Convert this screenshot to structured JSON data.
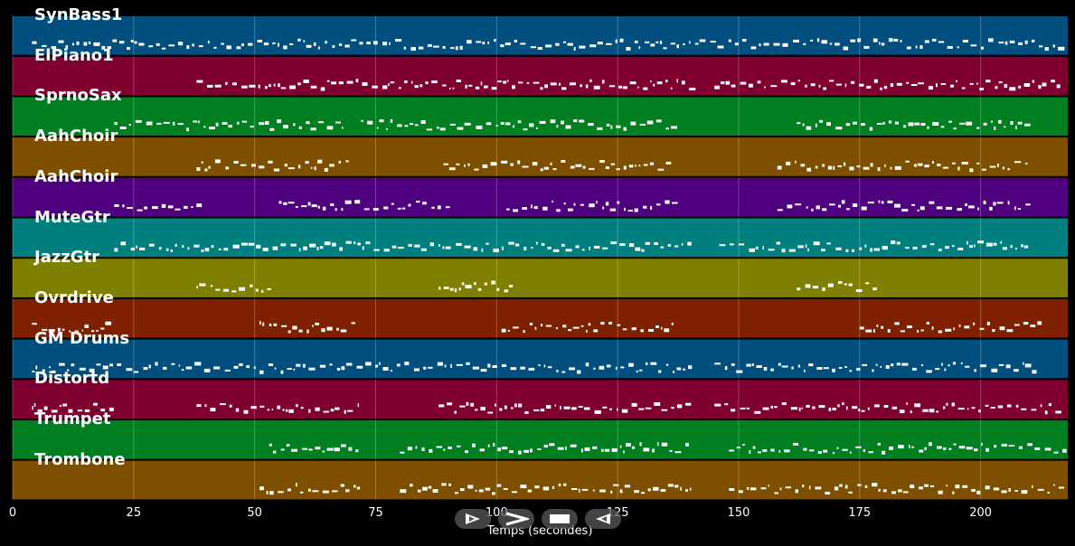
{
  "chart_data": {
    "type": "piano-roll",
    "xlabel": "Temps (secondes)",
    "xlim": [
      0,
      218
    ],
    "xticks": [
      0,
      25,
      50,
      75,
      100,
      125,
      150,
      175,
      200
    ],
    "grid": true,
    "tracks": [
      {
        "name": "SynBass1",
        "color": "#004f7f",
        "active": [
          [
            4,
            140
          ],
          [
            141,
            217
          ]
        ]
      },
      {
        "name": "ElPiano1",
        "color": "#7f0030",
        "active": [
          [
            38,
            140
          ],
          [
            145,
            217
          ]
        ]
      },
      {
        "name": "SprnoSax",
        "color": "#007f20",
        "active": [
          [
            21,
            68
          ],
          [
            72,
            137
          ],
          [
            162,
            210
          ]
        ]
      },
      {
        "name": "AahChoir",
        "color": "#7f4f00",
        "active": [
          [
            38,
            69
          ],
          [
            89,
            137
          ],
          [
            158,
            210
          ]
        ]
      },
      {
        "name": "AahChoir",
        "color": "#4f007f",
        "active": [
          [
            21,
            38
          ],
          [
            55,
            90
          ],
          [
            102,
            137
          ],
          [
            158,
            210
          ]
        ]
      },
      {
        "name": "MuteGtr",
        "color": "#007f7f",
        "active": [
          [
            21,
            140
          ],
          [
            146,
            210
          ]
        ]
      },
      {
        "name": "JazzGtr",
        "color": "#7f7f00",
        "active": [
          [
            38,
            54
          ],
          [
            88,
            103
          ],
          [
            162,
            178
          ]
        ]
      },
      {
        "name": "Ovrdrive",
        "color": "#7f2000",
        "active": [
          [
            4,
            20
          ],
          [
            51,
            70
          ],
          [
            101,
            137
          ],
          [
            175,
            212
          ]
        ]
      },
      {
        "name": "GM Drums",
        "color": "#004f7f",
        "active": [
          [
            4,
            140
          ],
          [
            145,
            212
          ]
        ]
      },
      {
        "name": "Distortd",
        "color": "#7f0030",
        "active": [
          [
            4,
            20
          ],
          [
            38,
            72
          ],
          [
            88,
            140
          ],
          [
            145,
            217
          ]
        ]
      },
      {
        "name": "Trumpet",
        "color": "#007f20",
        "active": [
          [
            53,
            72
          ],
          [
            80,
            140
          ],
          [
            148,
            217
          ]
        ]
      },
      {
        "name": "Trombone",
        "color": "#7f4f00",
        "active": [
          [
            51,
            72
          ],
          [
            80,
            140
          ],
          [
            148,
            217
          ]
        ]
      }
    ]
  },
  "controls": {
    "play_label": "play",
    "next_label": "next",
    "stop_label": "stop",
    "prev_label": "previous"
  }
}
